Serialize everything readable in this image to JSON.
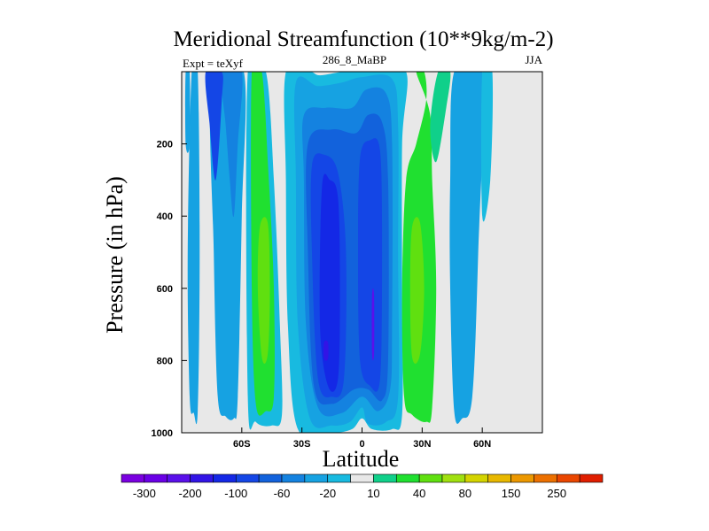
{
  "chart_data": {
    "type": "contour",
    "title": "Meridional Streamfunction (10**9kg/m-2)",
    "subtitle_left": "Expt = teXyf",
    "subtitle_center": "286_8_MaBP",
    "subtitle_right": "JJA",
    "xlabel": "Latitude",
    "ylabel": "Pressure (in hPa)",
    "xlim": [
      -90,
      90
    ],
    "ylim": [
      1000,
      0
    ],
    "x_ticks": [
      -60,
      -30,
      0,
      30,
      60
    ],
    "x_tick_labels": [
      "60S",
      "30S",
      "0",
      "30N",
      "60N"
    ],
    "y_ticks": [
      200,
      400,
      600,
      800,
      1000
    ],
    "y_tick_labels": [
      "200",
      "400",
      "600",
      "800",
      "1000"
    ],
    "colorbar": {
      "colors": [
        "#7a00e0",
        "#6a00e6",
        "#5a10ea",
        "#3214e6",
        "#1428e6",
        "#1446e6",
        "#1262dc",
        "#1482e0",
        "#16a2e2",
        "#18bae0",
        "#e8e8e8",
        "#10d08a",
        "#20e030",
        "#60e010",
        "#a0e010",
        "#d4d400",
        "#e8b800",
        "#ec9800",
        "#ec7000",
        "#ea4600",
        "#e01e00"
      ],
      "labels": [
        "-300",
        "-200",
        "-100",
        "-60",
        "-20",
        "10",
        "40",
        "80",
        "150",
        "250"
      ]
    },
    "bands": [
      {
        "name": "band-1",
        "color": "#16a2e2",
        "pts": [
          [
            -85,
            0
          ],
          [
            -82,
            0
          ],
          [
            -81,
            500
          ],
          [
            -82,
            940
          ],
          [
            -84,
            945
          ],
          [
            -86,
            900
          ],
          [
            -87,
            500
          ]
        ]
      },
      {
        "name": "band-2a",
        "color": "#16a2e2",
        "pts": [
          [
            -75,
            0
          ],
          [
            -59,
            0
          ],
          [
            -60,
            400
          ],
          [
            -62,
            900
          ],
          [
            -64,
            960
          ],
          [
            -68,
            955
          ],
          [
            -72,
            900
          ],
          [
            -74,
            500
          ]
        ]
      },
      {
        "name": "band-2b",
        "color": "#1482e0",
        "pts": [
          [
            -70,
            0
          ],
          [
            -60,
            0
          ],
          [
            -62,
            200
          ],
          [
            -64,
            400
          ],
          [
            -66,
            300
          ],
          [
            -68,
            150
          ]
        ]
      },
      {
        "name": "band-3a",
        "color": "#18bae0",
        "pts": [
          [
            -57,
            0
          ],
          [
            -48,
            0
          ],
          [
            -44,
            300
          ],
          [
            -41,
            700
          ],
          [
            -40,
            950
          ],
          [
            -45,
            980
          ],
          [
            -53,
            970
          ],
          [
            -57,
            900
          ]
        ]
      },
      {
        "name": "band-3b",
        "color": "#20e030",
        "pts": [
          [
            -55,
            0
          ],
          [
            -50,
            0
          ],
          [
            -47,
            250
          ],
          [
            -44,
            600
          ],
          [
            -44,
            900
          ],
          [
            -48,
            940
          ],
          [
            -53,
            920
          ],
          [
            -55,
            600
          ]
        ]
      },
      {
        "name": "band-3c",
        "color": "#60e010",
        "pts": [
          [
            -51,
            430
          ],
          [
            -47,
            420
          ],
          [
            -46,
            600
          ],
          [
            -47,
            780
          ],
          [
            -50,
            790
          ],
          [
            -52,
            600
          ]
        ]
      },
      {
        "name": "band-4a",
        "color": "#18bae0",
        "pts": [
          [
            -38,
            0
          ],
          [
            -26,
            0
          ],
          [
            -21,
            10
          ],
          [
            -9,
            0
          ],
          [
            6,
            0
          ],
          [
            22,
            0
          ],
          [
            20,
            200
          ],
          [
            20,
            600
          ],
          [
            20,
            950
          ],
          [
            15,
            990
          ],
          [
            5,
            990
          ],
          [
            0,
            960
          ],
          [
            -5,
            990
          ],
          [
            -15,
            1000
          ],
          [
            -32,
            990
          ],
          [
            -37,
            700
          ],
          [
            -38,
            300
          ]
        ]
      },
      {
        "name": "band-4b",
        "color": "#16a2e2",
        "pts": [
          [
            -33,
            30
          ],
          [
            -22,
            40
          ],
          [
            -10,
            30
          ],
          [
            0,
            15
          ],
          [
            15,
            20
          ],
          [
            18,
            150
          ],
          [
            18,
            500
          ],
          [
            18,
            900
          ],
          [
            12,
            970
          ],
          [
            3,
            975
          ],
          [
            0,
            930
          ],
          [
            -6,
            970
          ],
          [
            -15,
            980
          ],
          [
            -26,
            960
          ],
          [
            -32,
            700
          ],
          [
            -33,
            300
          ]
        ]
      },
      {
        "name": "band-4c",
        "color": "#1482e0",
        "pts": [
          [
            -29,
            120
          ],
          [
            -18,
            100
          ],
          [
            -5,
            100
          ],
          [
            2,
            50
          ],
          [
            12,
            60
          ],
          [
            15,
            200
          ],
          [
            15,
            700
          ],
          [
            14,
            880
          ],
          [
            8,
            940
          ],
          [
            0,
            900
          ],
          [
            -10,
            945
          ],
          [
            -22,
            930
          ],
          [
            -28,
            700
          ],
          [
            -29,
            300
          ]
        ]
      },
      {
        "name": "band-4d",
        "color": "#1262dc",
        "pts": [
          [
            -27,
            200
          ],
          [
            -15,
            160
          ],
          [
            -3,
            170
          ],
          [
            3,
            120
          ],
          [
            10,
            140
          ],
          [
            13,
            300
          ],
          [
            13,
            800
          ],
          [
            10,
            910
          ],
          [
            3,
            880
          ],
          [
            -4,
            880
          ],
          [
            -15,
            920
          ],
          [
            -24,
            870
          ],
          [
            -27,
            500
          ]
        ]
      },
      {
        "name": "band-4e",
        "color": "#1446e6",
        "pts": [
          [
            -25,
            260
          ],
          [
            -19,
            230
          ],
          [
            -12,
            280
          ],
          [
            -8,
            500
          ],
          [
            -9,
            850
          ],
          [
            -15,
            900
          ],
          [
            -22,
            850
          ],
          [
            -25,
            500
          ]
        ]
      },
      {
        "name": "band-4f",
        "color": "#1446e6",
        "pts": [
          [
            -1,
            240
          ],
          [
            4,
            190
          ],
          [
            9,
            220
          ],
          [
            10,
            500
          ],
          [
            9,
            850
          ],
          [
            4,
            870
          ],
          [
            -1,
            800
          ],
          [
            -2,
            500
          ]
        ]
      },
      {
        "name": "band-4g",
        "color": "#1428e6",
        "pts": [
          [
            -20,
            320
          ],
          [
            -16,
            300
          ],
          [
            -12,
            350
          ],
          [
            -11,
            600
          ],
          [
            -12,
            850
          ],
          [
            -17,
            870
          ],
          [
            -21,
            700
          ]
        ]
      },
      {
        "name": "band-4h",
        "color": "#3214e6",
        "pts": [
          [
            -19,
            750
          ],
          [
            -17,
            750
          ],
          [
            -17,
            795
          ],
          [
            -19,
            795
          ]
        ]
      },
      {
        "name": "band-4i",
        "color": "#5a10ea",
        "pts": [
          [
            5,
            620
          ],
          [
            6,
            620
          ],
          [
            6,
            780
          ],
          [
            5,
            780
          ]
        ]
      },
      {
        "name": "band-5a",
        "color": "#20e030",
        "pts": [
          [
            27,
            0
          ],
          [
            31,
            0
          ],
          [
            32,
            80
          ],
          [
            27,
            200
          ],
          [
            22,
            300
          ],
          [
            20,
            600
          ],
          [
            21,
            900
          ],
          [
            25,
            950
          ],
          [
            32,
            970
          ],
          [
            35,
            930
          ],
          [
            37,
            600
          ],
          [
            35,
            300
          ],
          [
            34,
            120
          ]
        ]
      },
      {
        "name": "band-5b",
        "color": "#10d08a",
        "pts": [
          [
            38,
            0
          ],
          [
            44,
            0
          ],
          [
            42,
            100
          ],
          [
            37,
            250
          ],
          [
            34,
            150
          ]
        ]
      },
      {
        "name": "band-5c",
        "color": "#60e010",
        "pts": [
          [
            25,
            430
          ],
          [
            29,
            420
          ],
          [
            31,
            600
          ],
          [
            29,
            780
          ],
          [
            25,
            790
          ],
          [
            24,
            600
          ]
        ]
      },
      {
        "name": "band-6",
        "color": "#16a2e2",
        "pts": [
          [
            46,
            0
          ],
          [
            60,
            0
          ],
          [
            58,
            500
          ],
          [
            55,
            900
          ],
          [
            50,
            960
          ],
          [
            46,
            940
          ],
          [
            44,
            600
          ],
          [
            44,
            300
          ]
        ]
      },
      {
        "name": "band-6b",
        "color": "#18bae0",
        "pts": [
          [
            60,
            0
          ],
          [
            65,
            0
          ],
          [
            64,
            300
          ],
          [
            60,
            400
          ]
        ]
      },
      {
        "name": "band-7",
        "color": "#16a2e2",
        "pts": [
          [
            -88,
            0
          ],
          [
            -86,
            0
          ],
          [
            -86,
            200
          ],
          [
            -88,
            200
          ]
        ]
      },
      {
        "name": "band-8",
        "color": "#1446e6",
        "pts": [
          [
            -78,
            0
          ],
          [
            -70,
            0
          ],
          [
            -70,
            80
          ],
          [
            -73,
            300
          ],
          [
            -76,
            150
          ]
        ]
      }
    ]
  }
}
